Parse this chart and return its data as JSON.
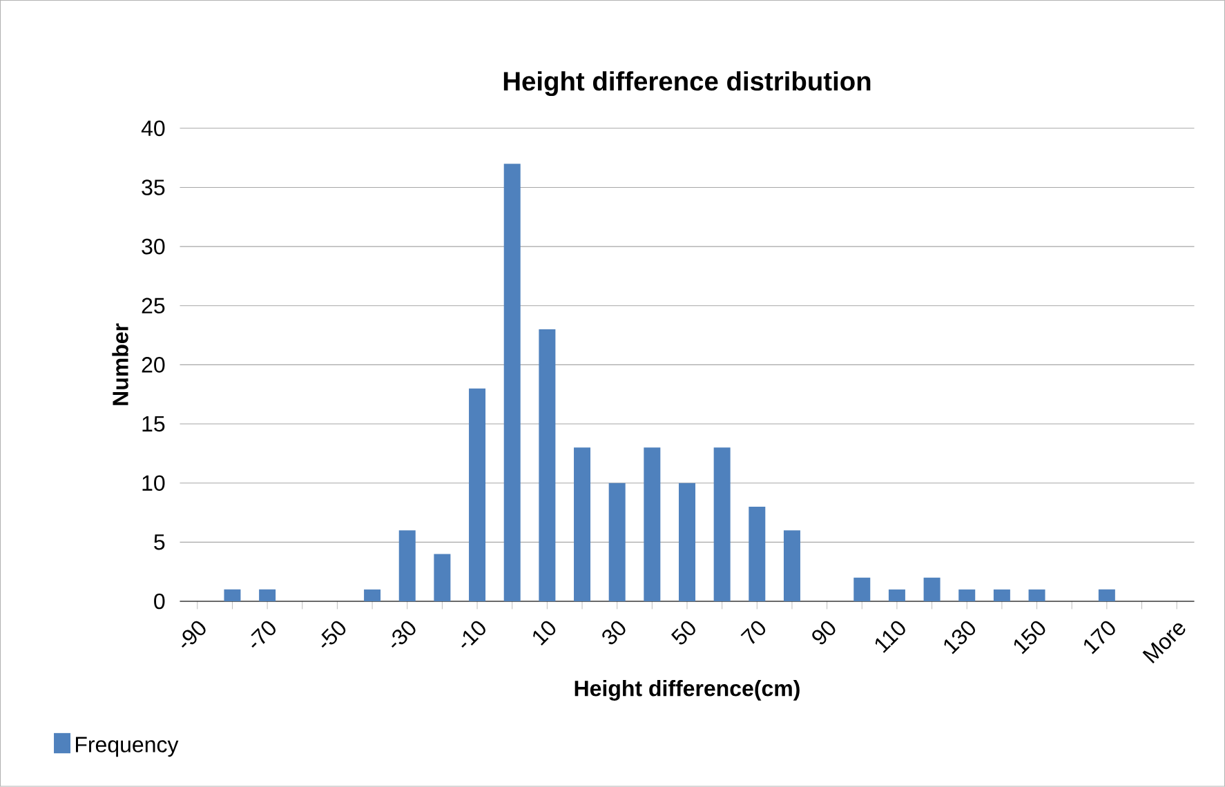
{
  "chart_data": {
    "type": "bar",
    "title": "Height difference distribution",
    "xlabel": "Height difference(cm)",
    "ylabel": "Number",
    "categories": [
      "-90",
      null,
      "-70",
      null,
      "-50",
      null,
      "-30",
      null,
      "-10",
      null,
      "10",
      null,
      "30",
      null,
      "50",
      null,
      "70",
      null,
      "90",
      null,
      "110",
      null,
      "130",
      null,
      "150",
      null,
      "170",
      null,
      "More"
    ],
    "series": [
      {
        "name": "Frequency",
        "color": "#4f81bd",
        "values": [
          0,
          1,
          1,
          0,
          0,
          1,
          6,
          4,
          18,
          37,
          23,
          13,
          10,
          13,
          10,
          13,
          8,
          6,
          0,
          2,
          1,
          2,
          1,
          1,
          1,
          0,
          1,
          0,
          0
        ]
      }
    ],
    "ylim": [
      0,
      40
    ],
    "yticks": [
      0,
      5,
      10,
      15,
      20,
      25,
      30,
      35,
      40
    ],
    "grid": "y",
    "legend": "bottom left"
  }
}
